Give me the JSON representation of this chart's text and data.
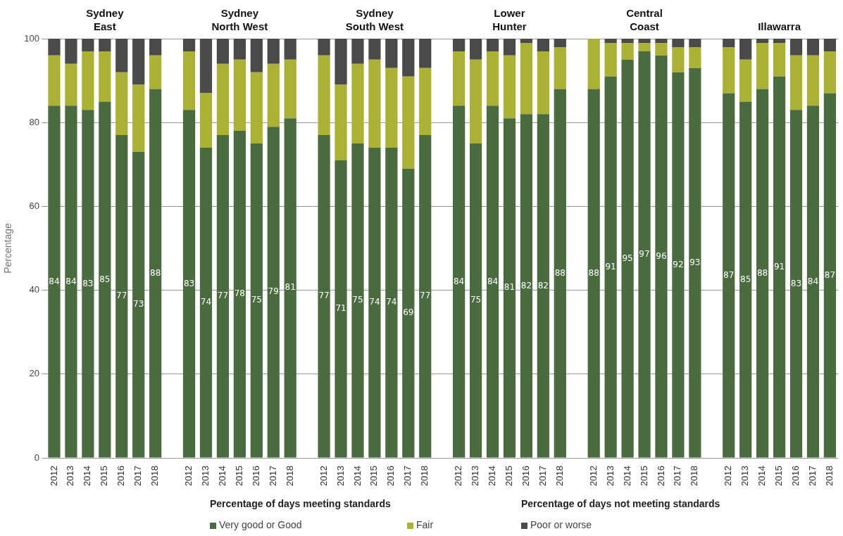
{
  "chart_data": {
    "type": "bar",
    "stacked": true,
    "ylabel": "Percentage",
    "ylim": [
      0,
      100
    ],
    "yticks": [
      0,
      20,
      40,
      60,
      80,
      100
    ],
    "grid": "y",
    "legend": "bottom",
    "annotations": [
      "Sydney East",
      "Sydney North West",
      "Sydney South West",
      "Lower Hunter",
      "Central Coast",
      "Illawarra",
      "Percentage of days meeting standards",
      "Percentage of days not meeting standards"
    ],
    "categories": [
      "2012",
      "2013",
      "2014",
      "2015",
      "2016",
      "2017",
      "2018",
      null,
      "2012",
      "2013",
      "2014",
      "2015",
      "2016",
      "2017",
      "2018",
      null,
      "2012",
      "2013",
      "2014",
      "2015",
      "2016",
      "2017",
      "2018",
      null,
      "2012",
      "2013",
      "2014",
      "2015",
      "2016",
      "2017",
      "2018",
      null,
      "2012",
      "2013",
      "2014",
      "2015",
      "2016",
      "2017",
      "2018",
      null,
      "2012",
      "2013",
      "2014",
      "2015",
      "2016",
      "2017",
      "2018"
    ],
    "series": [
      {
        "name": "Very good or Good",
        "color": "#4a6b3f",
        "values": [
          84,
          84,
          83,
          85,
          77,
          73,
          88,
          null,
          83,
          74,
          77,
          78,
          75,
          79,
          81,
          null,
          77,
          71,
          75,
          74,
          74,
          69,
          77,
          null,
          84,
          75,
          84,
          81,
          82,
          82,
          88,
          null,
          88,
          91,
          95,
          97,
          96,
          92,
          93,
          null,
          87,
          85,
          88,
          91,
          83,
          84,
          87
        ],
        "value_labels": [
          "84",
          "84",
          "83",
          "85",
          "77",
          "73",
          "88",
          null,
          "83",
          "74",
          "77",
          "78",
          "75",
          "79",
          "81",
          null,
          "77",
          "71",
          "75",
          "74",
          "74",
          "69",
          "77",
          null,
          "84",
          "75",
          "84",
          "81",
          "82",
          "82",
          "88",
          null,
          "88",
          "91",
          "95",
          "97",
          "96",
          "92",
          "93",
          null,
          "87",
          "85",
          "88",
          "91",
          "83",
          "84",
          "87"
        ]
      },
      {
        "name": "Fair",
        "color": "#abb135",
        "values": [
          12,
          10,
          14,
          12,
          15,
          16,
          8,
          null,
          14,
          13,
          17,
          17,
          17,
          15,
          14,
          null,
          19,
          18,
          19,
          21,
          19,
          22,
          16,
          null,
          13,
          20,
          13,
          15,
          17,
          15,
          10,
          null,
          12,
          8,
          4,
          2,
          3,
          6,
          5,
          null,
          11,
          10,
          11,
          8,
          13,
          12,
          10
        ]
      },
      {
        "name": "Poor or worse",
        "color": "#4a4a4a",
        "values": [
          4,
          6,
          3,
          3,
          8,
          11,
          4,
          null,
          3,
          13,
          6,
          5,
          8,
          6,
          5,
          null,
          4,
          11,
          6,
          5,
          7,
          9,
          7,
          null,
          3,
          5,
          3,
          4,
          1,
          3,
          2,
          null,
          0,
          1,
          1,
          1,
          1,
          2,
          2,
          null,
          2,
          5,
          1,
          1,
          4,
          4,
          3
        ]
      }
    ]
  }
}
